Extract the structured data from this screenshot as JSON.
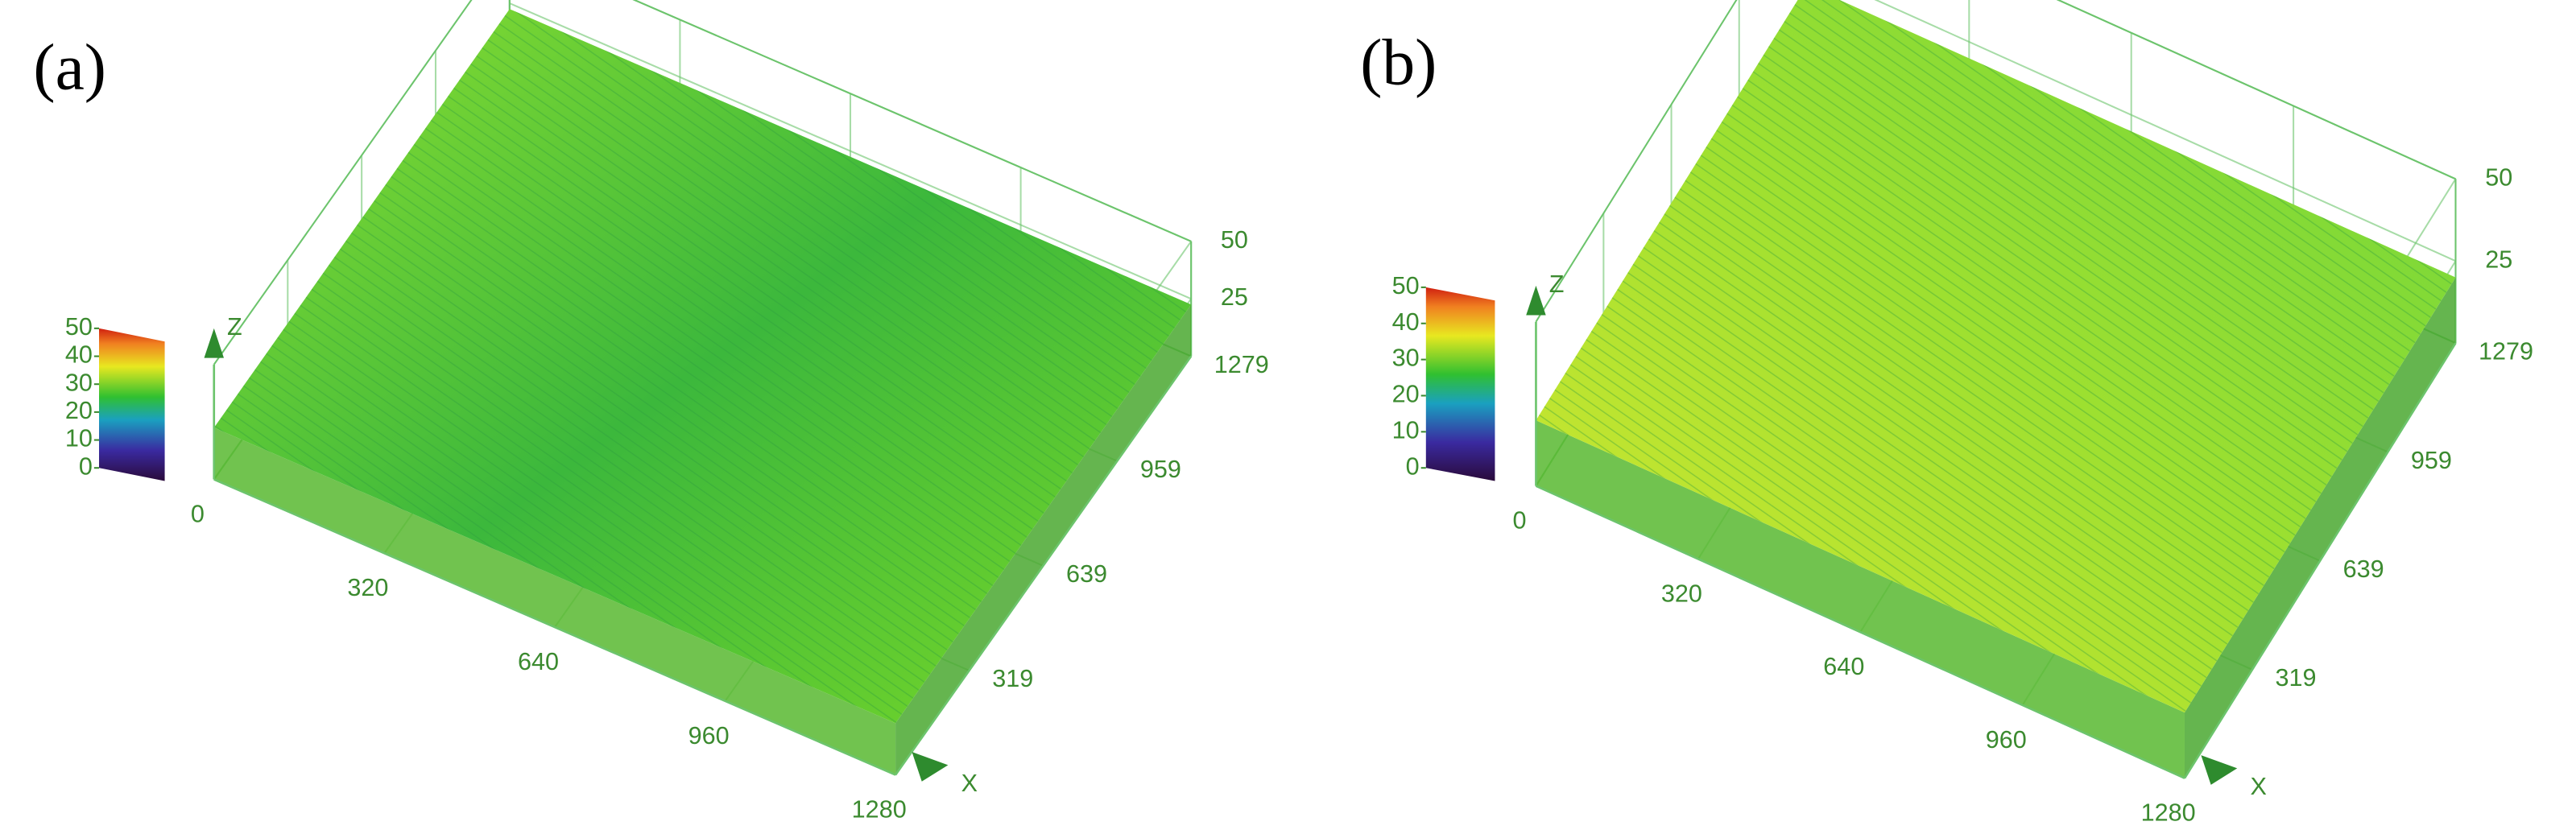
{
  "chart_data": [
    {
      "type": "surface",
      "panel_label": "(a)",
      "xlabel": "X",
      "zlabel": "Z",
      "xlim": [
        0,
        1280
      ],
      "ylim": [
        0,
        1279
      ],
      "zlim": [
        0,
        50
      ],
      "xticks": [
        0,
        320,
        640,
        960,
        1280
      ],
      "yticks": [
        319,
        639,
        959,
        1279
      ],
      "zticks": [
        25,
        50
      ],
      "colorbar_ticks": [
        0,
        10,
        20,
        30,
        40,
        50
      ]
    },
    {
      "type": "surface",
      "panel_label": "(b)",
      "xlabel": "X",
      "zlabel": "Z",
      "xlim": [
        0,
        1280
      ],
      "ylim": [
        0,
        1279
      ],
      "zlim": [
        0,
        50
      ],
      "xticks": [
        0,
        320,
        640,
        960,
        1280
      ],
      "yticks": [
        319,
        639,
        959,
        1279
      ],
      "zticks": [
        25,
        50
      ],
      "colorbar_ticks": [
        0,
        10,
        20,
        30,
        40,
        50
      ]
    }
  ]
}
